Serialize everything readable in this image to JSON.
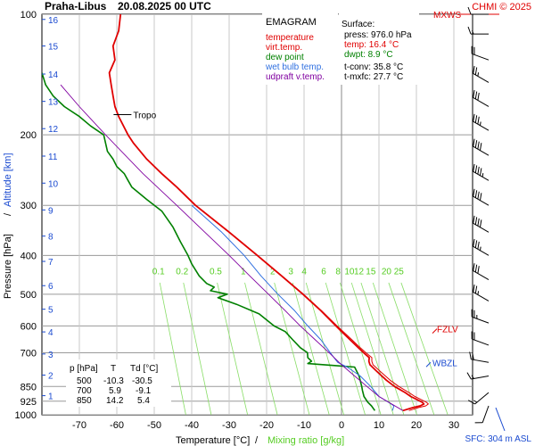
{
  "chart_data": {
    "type": "line",
    "title": "Praha-Libus",
    "datetime": "20.08.2025 00 UTC",
    "credit": "CHMI © 2025",
    "diagram_name": "EMAGRAM",
    "xlabel": "Temperature [°C]",
    "xlabel_sep": "/",
    "xlabel2": "Mixing ratio [g/kg]",
    "ylabel": "Pressure [hPa]",
    "ylabel_sep": "/",
    "ylabel2": "Altitude [km]",
    "xlim": [
      -80,
      35
    ],
    "ylim": [
      1000,
      100
    ],
    "y_scale": "log",
    "grid": true,
    "x_ticks": [
      -70,
      -60,
      -50,
      -40,
      -30,
      -20,
      -10,
      0,
      10,
      20,
      30
    ],
    "pressure_ticks": [
      100,
      200,
      300,
      400,
      500,
      600,
      700,
      850,
      925,
      1000
    ],
    "altitude_ticks": [
      {
        "km": 1,
        "p": 896
      },
      {
        "km": 2,
        "p": 796
      },
      {
        "km": 3,
        "p": 705
      },
      {
        "km": 4,
        "p": 621
      },
      {
        "km": 5,
        "p": 545
      },
      {
        "km": 6,
        "p": 476
      },
      {
        "km": 7,
        "p": 414
      },
      {
        "km": 8,
        "p": 358
      },
      {
        "km": 9,
        "p": 308
      },
      {
        "km": 10,
        "p": 264
      },
      {
        "km": 11,
        "p": 226
      },
      {
        "km": 12,
        "p": 193
      },
      {
        "km": 13,
        "p": 165
      },
      {
        "km": 14,
        "p": 141
      },
      {
        "km": 15,
        "p": 120
      },
      {
        "km": 16,
        "p": 103
      }
    ],
    "mixing_ratio_labels": [
      "0.1",
      "0.2",
      "0.5",
      "1",
      "2",
      "3",
      "4",
      "6",
      "8",
      "10",
      "12",
      "15",
      "20",
      "25"
    ],
    "mixing_ratio_label_pressure": 450,
    "legend": {
      "title": "EMAGRAM",
      "entries": [
        {
          "label": "temperature",
          "color": "#e00000"
        },
        {
          "label": "virt.temp.",
          "color": "#e00000"
        },
        {
          "label": "dew point",
          "color": "#008000"
        },
        {
          "label": "wet bulb temp.",
          "color": "#3070e0"
        },
        {
          "label": "udpraft v.temp.",
          "color": "#8000a0"
        }
      ]
    },
    "surface_box": {
      "title": "Surface:",
      "lines": [
        {
          "text": "press: 976.0 hPa",
          "color": "#000000"
        },
        {
          "text": "temp: 16.4 °C",
          "color": "#e00000"
        },
        {
          "text": "dwpt: 8.9 °C",
          "color": "#008000"
        }
      ],
      "extra": [
        "t-conv: 35.8 °C",
        "t-mxfc: 27.7 °C"
      ]
    },
    "levels_table": {
      "headers": [
        "p [hPa]",
        "T",
        "Td [°C]"
      ],
      "rows": [
        [
          "500",
          "-10.3",
          "-30.5"
        ],
        [
          "700",
          "5.9",
          "-9.1"
        ],
        [
          "850",
          "14.2",
          "5.4"
        ]
      ]
    },
    "markers": [
      {
        "label": "Tropo",
        "p": 178,
        "t": -58
      },
      {
        "label": "FZLV",
        "p": 610,
        "t": 0
      },
      {
        "label": "WBZL",
        "p": 740,
        "t": 0
      },
      {
        "label": "MXWS",
        "p": 100,
        "t": 0
      }
    ],
    "sfc_label": "SFC: 304 m ASL",
    "series": [
      {
        "name": "temperature",
        "color": "#e00000",
        "points": [
          [
            976,
            16.4
          ],
          [
            960,
            19
          ],
          [
            950,
            21
          ],
          [
            940,
            22
          ],
          [
            930,
            21.5
          ],
          [
            920,
            20.5
          ],
          [
            900,
            18.5
          ],
          [
            880,
            17
          ],
          [
            850,
            14.2
          ],
          [
            820,
            12
          ],
          [
            780,
            9.5
          ],
          [
            750,
            7.6
          ],
          [
            735,
            7.3
          ],
          [
            720,
            7.4
          ],
          [
            700,
            5.9
          ],
          [
            680,
            4.5
          ],
          [
            650,
            2.3
          ],
          [
            600,
            -1.5
          ],
          [
            550,
            -5.5
          ],
          [
            500,
            -10.3
          ],
          [
            450,
            -16
          ],
          [
            400,
            -22.5
          ],
          [
            350,
            -30
          ],
          [
            300,
            -39
          ],
          [
            270,
            -44
          ],
          [
            250,
            -48
          ],
          [
            230,
            -52
          ],
          [
            210,
            -55.5
          ],
          [
            200,
            -57
          ],
          [
            180,
            -59.5
          ],
          [
            170,
            -60.5
          ],
          [
            160,
            -61
          ],
          [
            150,
            -61.5
          ],
          [
            140,
            -62
          ],
          [
            130,
            -60.5
          ],
          [
            120,
            -61
          ],
          [
            110,
            -59.5
          ],
          [
            100,
            -59
          ]
        ]
      },
      {
        "name": "virt.temp.",
        "color": "#e00000",
        "points": [
          [
            976,
            18
          ],
          [
            960,
            20.5
          ],
          [
            950,
            22.5
          ],
          [
            940,
            23.2
          ],
          [
            930,
            22.6
          ],
          [
            920,
            21.6
          ],
          [
            900,
            19.6
          ],
          [
            880,
            18
          ],
          [
            850,
            15.3
          ],
          [
            820,
            13
          ],
          [
            780,
            10.4
          ],
          [
            750,
            8.4
          ],
          [
            735,
            8.1
          ],
          [
            720,
            8.1
          ],
          [
            700,
            6.5
          ],
          [
            680,
            5
          ],
          [
            650,
            2.8
          ],
          [
            600,
            -1.2
          ],
          [
            550,
            -5.3
          ],
          [
            500,
            -10.2
          ],
          [
            450,
            -15.9
          ],
          [
            400,
            -22.4
          ],
          [
            350,
            -29.9
          ],
          [
            300,
            -38.9
          ],
          [
            270,
            -43.9
          ],
          [
            250,
            -47.9
          ],
          [
            230,
            -52
          ],
          [
            210,
            -55.5
          ],
          [
            200,
            -57
          ]
        ]
      },
      {
        "name": "dew point",
        "color": "#008000",
        "points": [
          [
            976,
            8.9
          ],
          [
            950,
            8
          ],
          [
            930,
            7
          ],
          [
            900,
            6
          ],
          [
            870,
            5.6
          ],
          [
            850,
            5.4
          ],
          [
            800,
            4.7
          ],
          [
            760,
            3.5
          ],
          [
            745,
            -9
          ],
          [
            735,
            -8
          ],
          [
            720,
            -9
          ],
          [
            700,
            -9.1
          ],
          [
            680,
            -11
          ],
          [
            650,
            -13
          ],
          [
            620,
            -15
          ],
          [
            600,
            -18
          ],
          [
            560,
            -22
          ],
          [
            530,
            -28
          ],
          [
            510,
            -33
          ],
          [
            500,
            -30.5
          ],
          [
            490,
            -35
          ],
          [
            480,
            -34
          ],
          [
            470,
            -36
          ],
          [
            450,
            -38
          ],
          [
            420,
            -40
          ],
          [
            400,
            -41
          ],
          [
            370,
            -43
          ],
          [
            340,
            -45
          ],
          [
            310,
            -48
          ],
          [
            290,
            -52
          ],
          [
            270,
            -56
          ],
          [
            260,
            -57
          ],
          [
            250,
            -58
          ],
          [
            240,
            -60
          ],
          [
            230,
            -61
          ],
          [
            220,
            -62.5
          ],
          [
            200,
            -63.5
          ],
          [
            190,
            -67
          ],
          [
            180,
            -70
          ],
          [
            170,
            -74
          ],
          [
            160,
            -77
          ],
          [
            150,
            -79
          ],
          [
            140,
            -80
          ]
        ]
      },
      {
        "name": "wet bulb temp.",
        "color": "#3070e0",
        "points": [
          [
            976,
            13.6
          ],
          [
            950,
            14
          ],
          [
            930,
            12.5
          ],
          [
            900,
            10
          ],
          [
            850,
            7.8
          ],
          [
            800,
            5
          ],
          [
            760,
            1.5
          ],
          [
            740,
            -1
          ],
          [
            720,
            -2
          ],
          [
            700,
            -3
          ],
          [
            650,
            -5.5
          ],
          [
            600,
            -9
          ],
          [
            550,
            -12.5
          ],
          [
            500,
            -17
          ],
          [
            450,
            -21.5
          ],
          [
            400,
            -26
          ],
          [
            350,
            -32
          ],
          [
            300,
            -40
          ]
        ]
      },
      {
        "name": "udpraft v.temp.",
        "color": "#8000a0",
        "points": [
          [
            976,
            16.4
          ],
          [
            900,
            10
          ],
          [
            850,
            6.8
          ],
          [
            800,
            3.5
          ],
          [
            750,
            0
          ],
          [
            700,
            -3.3
          ],
          [
            650,
            -7
          ],
          [
            600,
            -11
          ],
          [
            550,
            -15
          ],
          [
            500,
            -19.5
          ],
          [
            450,
            -24.5
          ],
          [
            400,
            -30
          ],
          [
            350,
            -36.5
          ],
          [
            300,
            -44
          ],
          [
            250,
            -53
          ],
          [
            200,
            -63
          ],
          [
            170,
            -70
          ],
          [
            150,
            -75
          ]
        ]
      }
    ],
    "wind_profile": [
      {
        "p": 950,
        "dir": 200,
        "speed": 10
      },
      {
        "p": 880,
        "dir": 230,
        "speed": 15
      },
      {
        "p": 800,
        "dir": 260,
        "speed": 15
      },
      {
        "p": 740,
        "dir": 280,
        "speed": 20
      },
      {
        "p": 670,
        "dir": 290,
        "speed": 20
      },
      {
        "p": 590,
        "dir": 290,
        "speed": 25
      },
      {
        "p": 520,
        "dir": 300,
        "speed": 25
      },
      {
        "p": 460,
        "dir": 300,
        "speed": 30
      },
      {
        "p": 400,
        "dir": 300,
        "speed": 35
      },
      {
        "p": 350,
        "dir": 300,
        "speed": 40
      },
      {
        "p": 300,
        "dir": 300,
        "speed": 40
      },
      {
        "p": 260,
        "dir": 300,
        "speed": 45
      },
      {
        "p": 225,
        "dir": 300,
        "speed": 40
      },
      {
        "p": 195,
        "dir": 300,
        "speed": 35
      },
      {
        "p": 170,
        "dir": 300,
        "speed": 30
      },
      {
        "p": 148,
        "dir": 300,
        "speed": 25
      },
      {
        "p": 130,
        "dir": 290,
        "speed": 20
      },
      {
        "p": 112,
        "dir": 270,
        "speed": 15
      },
      {
        "p": 100,
        "dir": 270,
        "speed": 10
      }
    ]
  }
}
